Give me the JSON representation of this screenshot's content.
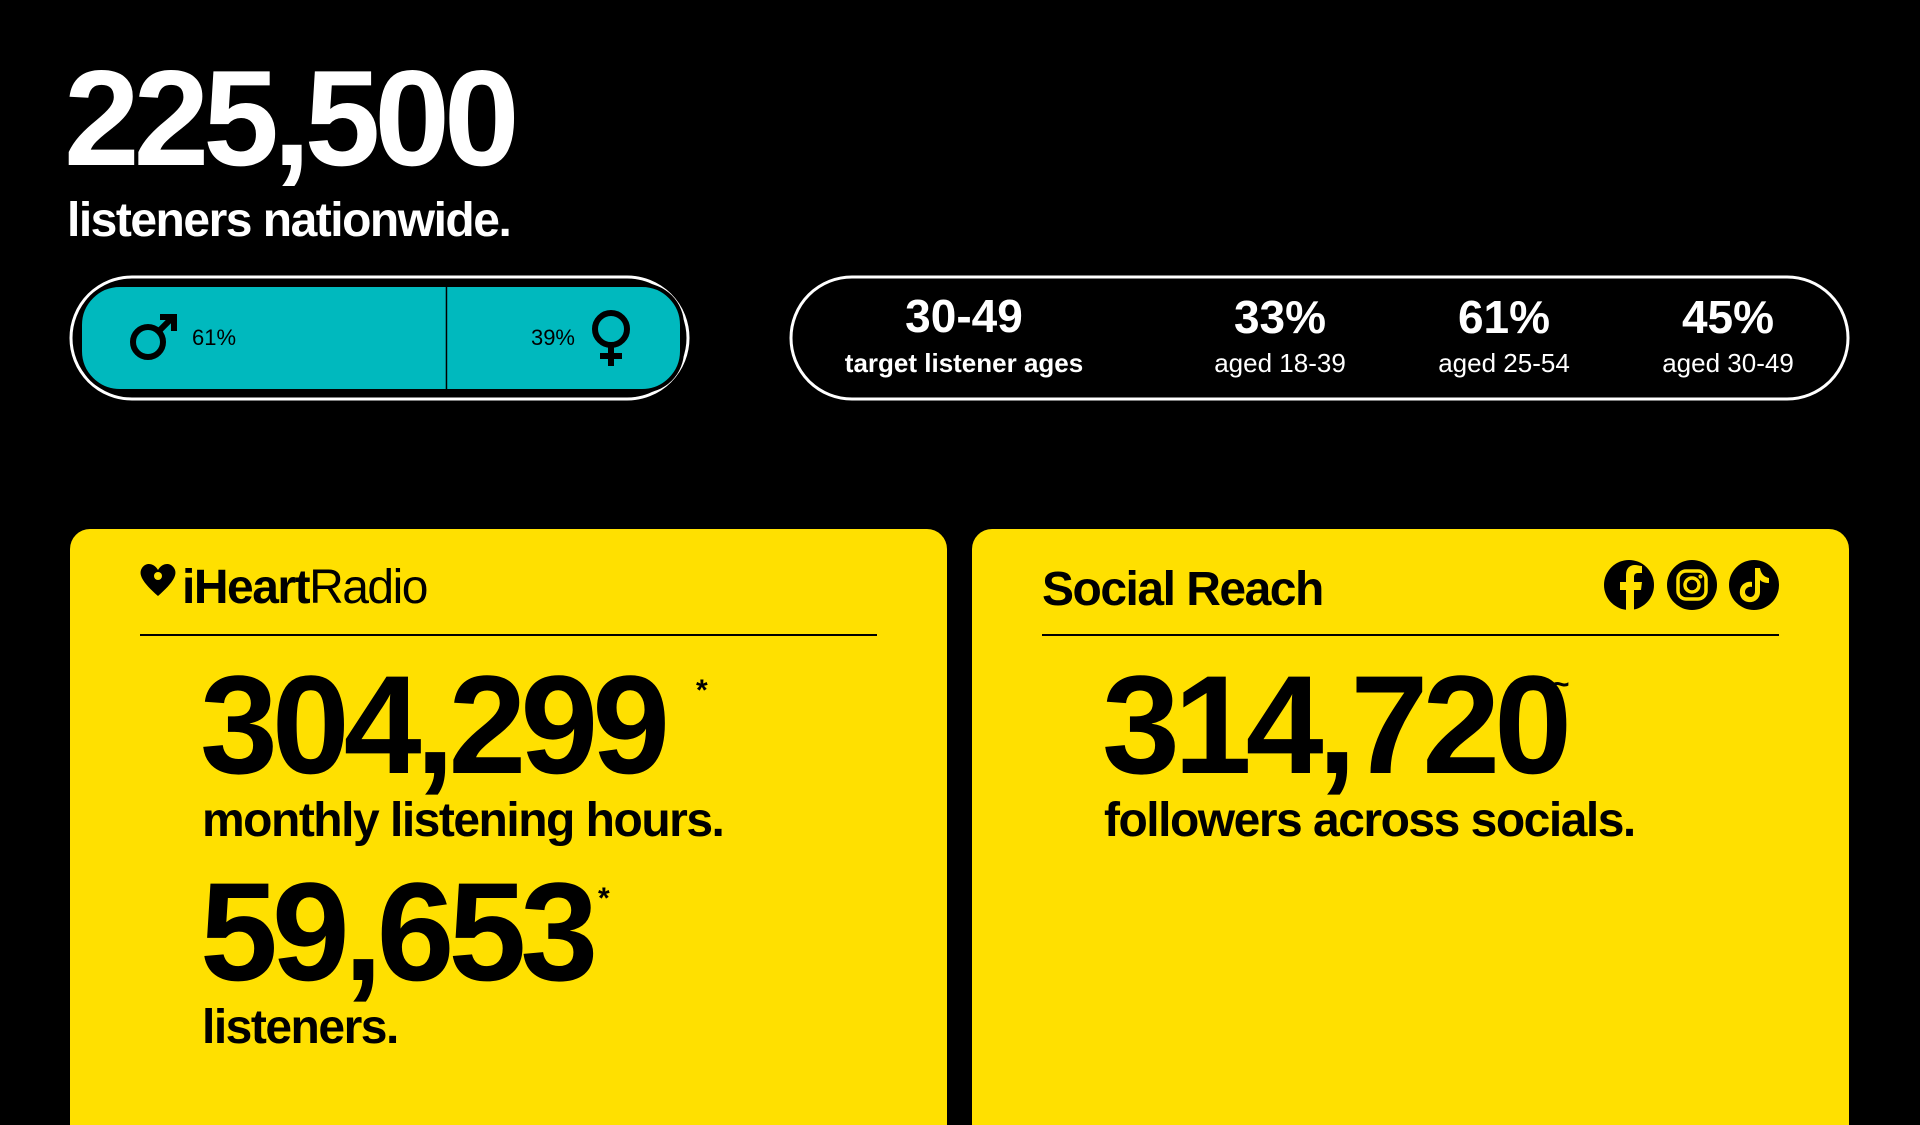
{
  "header": {
    "total": "225,500",
    "subtitle": "listeners nationwide."
  },
  "gender": {
    "values": [
      61,
      39
    ],
    "value_labels": [
      "61%",
      "39%"
    ],
    "color": "#00b9be"
  },
  "ages": {
    "target": {
      "value": "30-49",
      "label": "target listener ages"
    },
    "groups": [
      {
        "value": "33%",
        "label": "aged 18-39"
      },
      {
        "value": "61%",
        "label": "aged 25-54"
      },
      {
        "value": "45%",
        "label": "aged 30-49"
      }
    ]
  },
  "iheart": {
    "brand_bold": "iHeart",
    "brand_light": "Radio",
    "stats": [
      {
        "value": "304,299",
        "note": "*",
        "label": "monthly listening hours."
      },
      {
        "value": "59,653",
        "note": "*",
        "label": "listeners."
      }
    ]
  },
  "social": {
    "title": "Social Reach",
    "value": "314,720",
    "note": "~",
    "label": "followers across socials."
  }
}
